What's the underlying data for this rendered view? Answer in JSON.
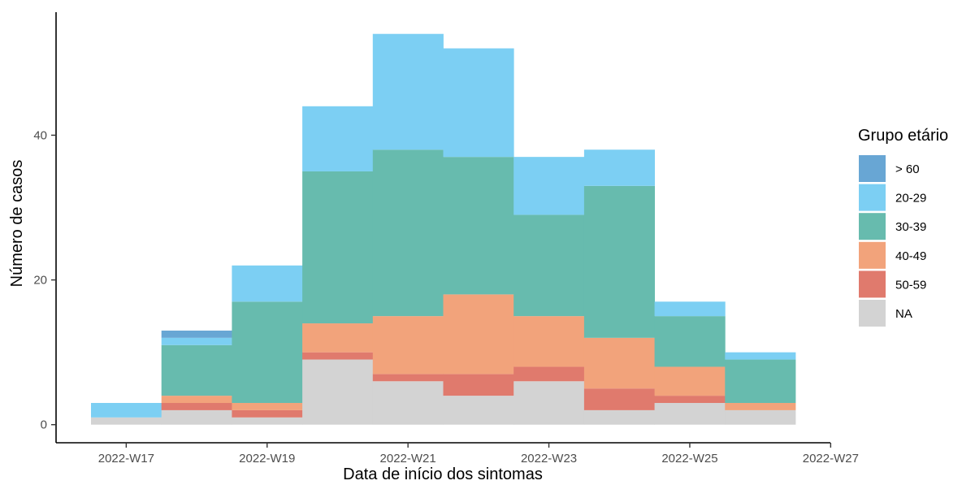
{
  "chart_data": {
    "type": "bar",
    "stacked": true,
    "categories": [
      "2022-W17",
      "2022-W18",
      "2022-W19",
      "2022-W20",
      "2022-W21",
      "2022-W22",
      "2022-W23",
      "2022-W24",
      "2022-W25",
      "2022-W26"
    ],
    "series": [
      {
        "name": "NA",
        "color": "#d3d3d3",
        "values": [
          1,
          2,
          1,
          9,
          6,
          4,
          6,
          2,
          3,
          2
        ]
      },
      {
        "name": "50-59",
        "color": "#e07a6d",
        "values": [
          0,
          1,
          1,
          1,
          1,
          3,
          2,
          3,
          1,
          0
        ]
      },
      {
        "name": "40-49",
        "color": "#f2a37b",
        "values": [
          0,
          1,
          1,
          4,
          8,
          11,
          7,
          7,
          4,
          1
        ]
      },
      {
        "name": "30-39",
        "color": "#67bbae",
        "values": [
          0,
          7,
          14,
          21,
          23,
          19,
          14,
          21,
          7,
          6
        ]
      },
      {
        "name": "20-29",
        "color": "#7ccff3",
        "values": [
          2,
          1,
          5,
          9,
          16,
          15,
          8,
          5,
          2,
          1
        ]
      },
      {
        "name": "> 60",
        "color": "#68a6d4",
        "values": [
          0,
          1,
          0,
          0,
          0,
          0,
          0,
          0,
          0,
          0
        ]
      }
    ],
    "legend_order": [
      "> 60",
      "20-29",
      "30-39",
      "40-49",
      "50-59",
      "NA"
    ],
    "xlabel": "Data de início dos sintomas",
    "ylabel": "Número de casos",
    "x_ticks": [
      "2022-W17",
      "2022-W19",
      "2022-W21",
      "2022-W23",
      "2022-W25",
      "2022-W27"
    ],
    "y_ticks": [
      0,
      20,
      40
    ],
    "ylim": [
      -2.5,
      57
    ],
    "grid": false,
    "legend_title": "Grupo etário",
    "legend_position": "right"
  }
}
